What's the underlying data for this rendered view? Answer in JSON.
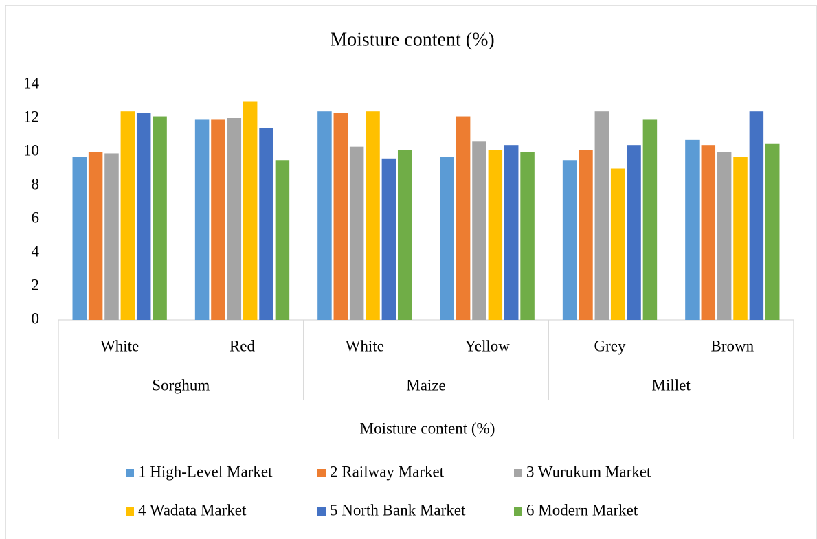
{
  "chart_data": {
    "type": "bar",
    "title": "Moisture content (%)",
    "x_label": "Moisture content (%)",
    "groups": [
      {
        "name": "Sorghum",
        "categories": [
          "White",
          "Red"
        ]
      },
      {
        "name": "Maize",
        "categories": [
          "White",
          "Yellow"
        ]
      },
      {
        "name": "Millet",
        "categories": [
          "Grey",
          "Brown"
        ]
      }
    ],
    "series": [
      {
        "name": "1 High-Level Market",
        "color": "#5b9bd5",
        "values": [
          9.7,
          11.9,
          12.4,
          9.7,
          9.5,
          10.7
        ]
      },
      {
        "name": "2 Railway Market",
        "color": "#ed7d31",
        "values": [
          10.0,
          11.9,
          12.3,
          12.1,
          10.1,
          10.4
        ]
      },
      {
        "name": "3 Wurukum Market",
        "color": "#a5a5a5",
        "values": [
          9.9,
          12.0,
          10.3,
          10.6,
          12.4,
          10.0
        ]
      },
      {
        "name": "4 Wadata Market",
        "color": "#ffc000",
        "values": [
          12.4,
          13.0,
          12.4,
          10.1,
          9.0,
          9.7
        ]
      },
      {
        "name": "5 North Bank Market",
        "color": "#4472c4",
        "values": [
          12.3,
          11.4,
          9.6,
          10.4,
          10.4,
          12.4
        ]
      },
      {
        "name": "6 Modern Market",
        "color": "#70ad47",
        "values": [
          12.1,
          9.5,
          10.1,
          10.0,
          11.9,
          10.5
        ]
      }
    ],
    "ylim": [
      0,
      14
    ],
    "yticks": [
      0,
      2,
      4,
      6,
      8,
      10,
      12,
      14
    ],
    "grid": false,
    "legend": "bottom"
  }
}
